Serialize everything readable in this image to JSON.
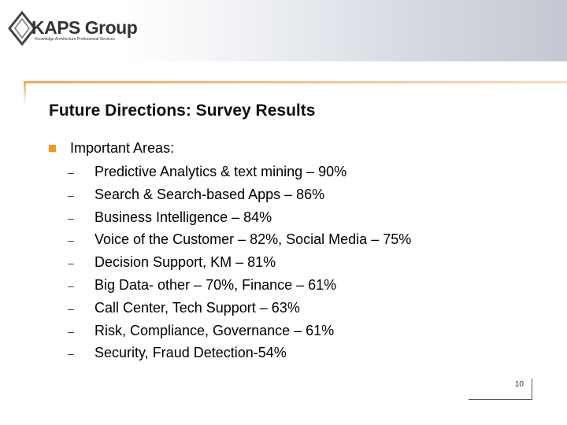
{
  "logo": {
    "name": "KAPS Group",
    "tagline": "Knowledge Architecture Professional Services"
  },
  "slide": {
    "title": "Future Directions: Survey Results",
    "main_bullet": "Important Areas:",
    "items": [
      "Predictive Analytics & text mining – 90%",
      "Search & Search-based Apps – 86%",
      "Business Intelligence – 84%",
      "Voice of the Customer – 82%, Social Media – 75%",
      "Decision Support, KM – 81%",
      "Big Data- other – 70%, Finance – 61%",
      "Call Center, Tech Support – 63%",
      "Risk, Compliance, Governance – 61%",
      "Security, Fraud Detection-54%"
    ],
    "dash_glyph": "–",
    "page_number": "10"
  },
  "colors": {
    "accent_orange": "#f7941d",
    "frame_orange": "#f5a55a"
  }
}
